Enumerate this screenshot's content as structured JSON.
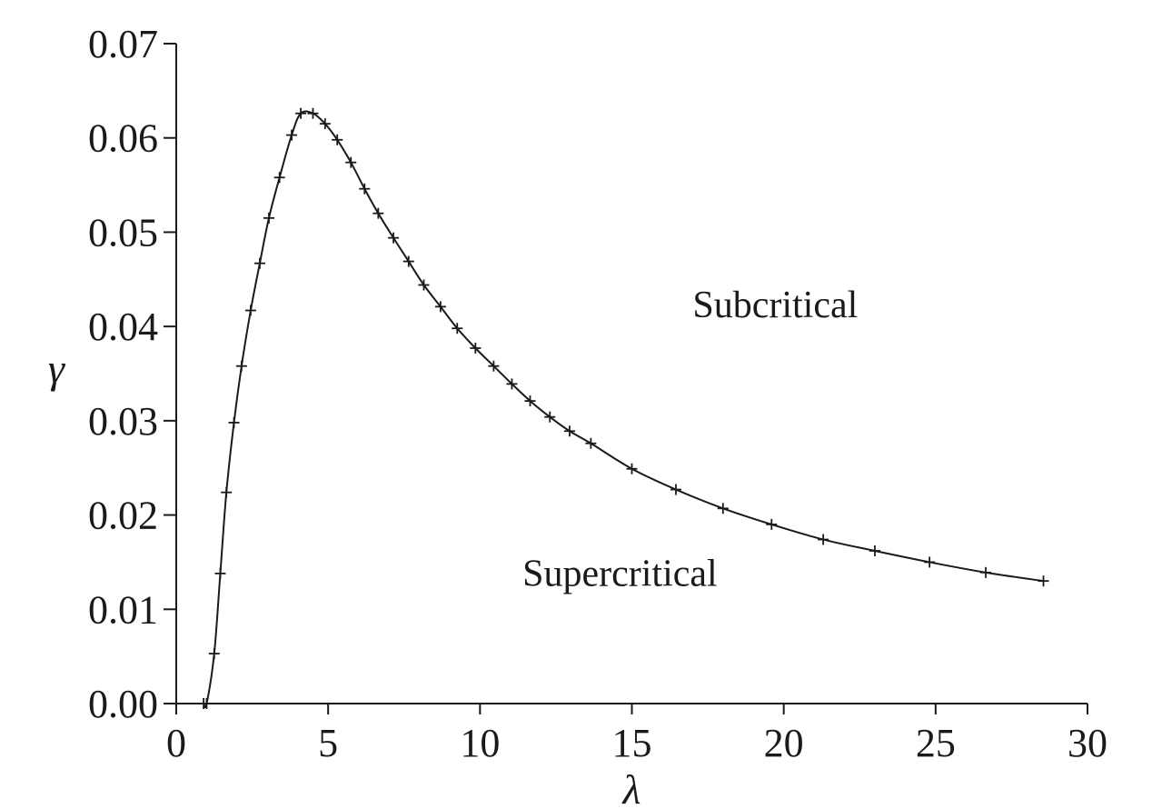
{
  "chart_data": {
    "type": "line",
    "xlabel": "λ",
    "ylabel": "γ",
    "xlim": [
      0,
      30
    ],
    "ylim": [
      0,
      0.07
    ],
    "grid": false,
    "x_ticks": [
      0,
      5,
      10,
      15,
      20,
      25,
      30
    ],
    "x_tick_labels": [
      "0",
      "5",
      "10",
      "15",
      "20",
      "25",
      "30"
    ],
    "y_ticks": [
      0,
      0.01,
      0.02,
      0.03,
      0.04,
      0.05,
      0.06,
      0.07
    ],
    "y_tick_labels": [
      "0.00",
      "0.01",
      "0.02",
      "0.03",
      "0.04",
      "0.05",
      "0.06",
      "0.07"
    ],
    "annotations": [
      {
        "text": "Subcritical",
        "x": 17.0,
        "y": 0.041
      },
      {
        "text": "Supercritical",
        "x": 11.4,
        "y": 0.0125
      }
    ],
    "series": [
      {
        "marker": "+",
        "x": [
          0.9,
          1.0,
          1.25,
          1.45,
          1.65,
          1.9,
          2.15,
          2.45,
          2.75,
          3.05,
          3.4,
          3.8,
          4.1,
          4.5,
          4.9,
          5.3,
          5.75,
          6.2,
          6.65,
          7.15,
          7.65,
          8.15,
          8.7,
          9.25,
          9.85,
          10.45,
          11.05,
          11.65,
          12.3,
          12.95,
          13.65,
          15.0,
          16.45,
          18.0,
          19.6,
          21.3,
          23.0,
          24.8,
          26.65,
          28.55
        ],
        "y": [
          0.0,
          0.0,
          0.0053,
          0.0138,
          0.0224,
          0.0298,
          0.0358,
          0.0417,
          0.0467,
          0.0515,
          0.0558,
          0.0603,
          0.0626,
          0.0626,
          0.0615,
          0.0598,
          0.0574,
          0.0546,
          0.052,
          0.0494,
          0.0469,
          0.0444,
          0.0421,
          0.0398,
          0.0377,
          0.0358,
          0.0339,
          0.0321,
          0.0304,
          0.0289,
          0.0276,
          0.0249,
          0.0227,
          0.0207,
          0.019,
          0.0174,
          0.0162,
          0.015,
          0.0139,
          0.013
        ]
      }
    ]
  }
}
